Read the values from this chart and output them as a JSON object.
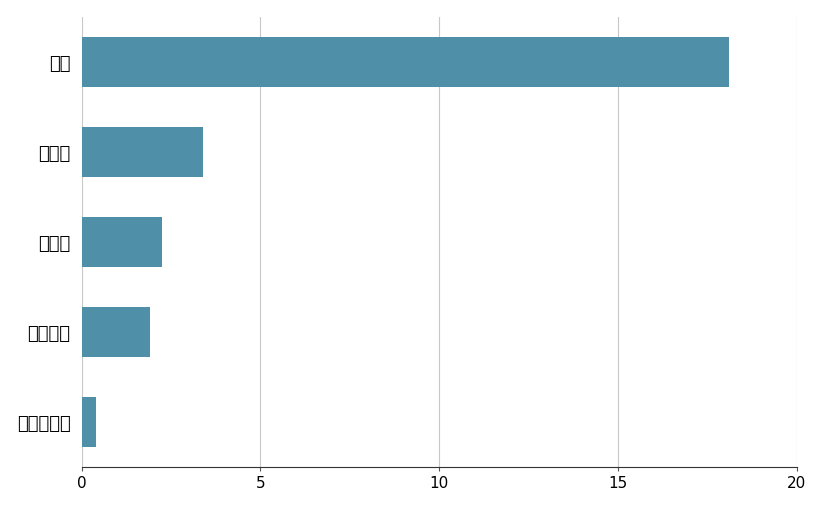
{
  "categories": [
    "中国",
    "インド",
    "ロシア",
    "ブラジル",
    "南アフリカ"
  ],
  "values": [
    18.1,
    3.39,
    2.24,
    1.92,
    0.41
  ],
  "bar_color": "#4f8fa8",
  "xlim": [
    0,
    20
  ],
  "xticks": [
    0,
    5,
    10,
    15,
    20
  ],
  "background_color": "#ffffff",
  "grid_color": "#c8c8c8",
  "bar_height": 0.55,
  "label_fontsize": 13,
  "tick_fontsize": 11
}
